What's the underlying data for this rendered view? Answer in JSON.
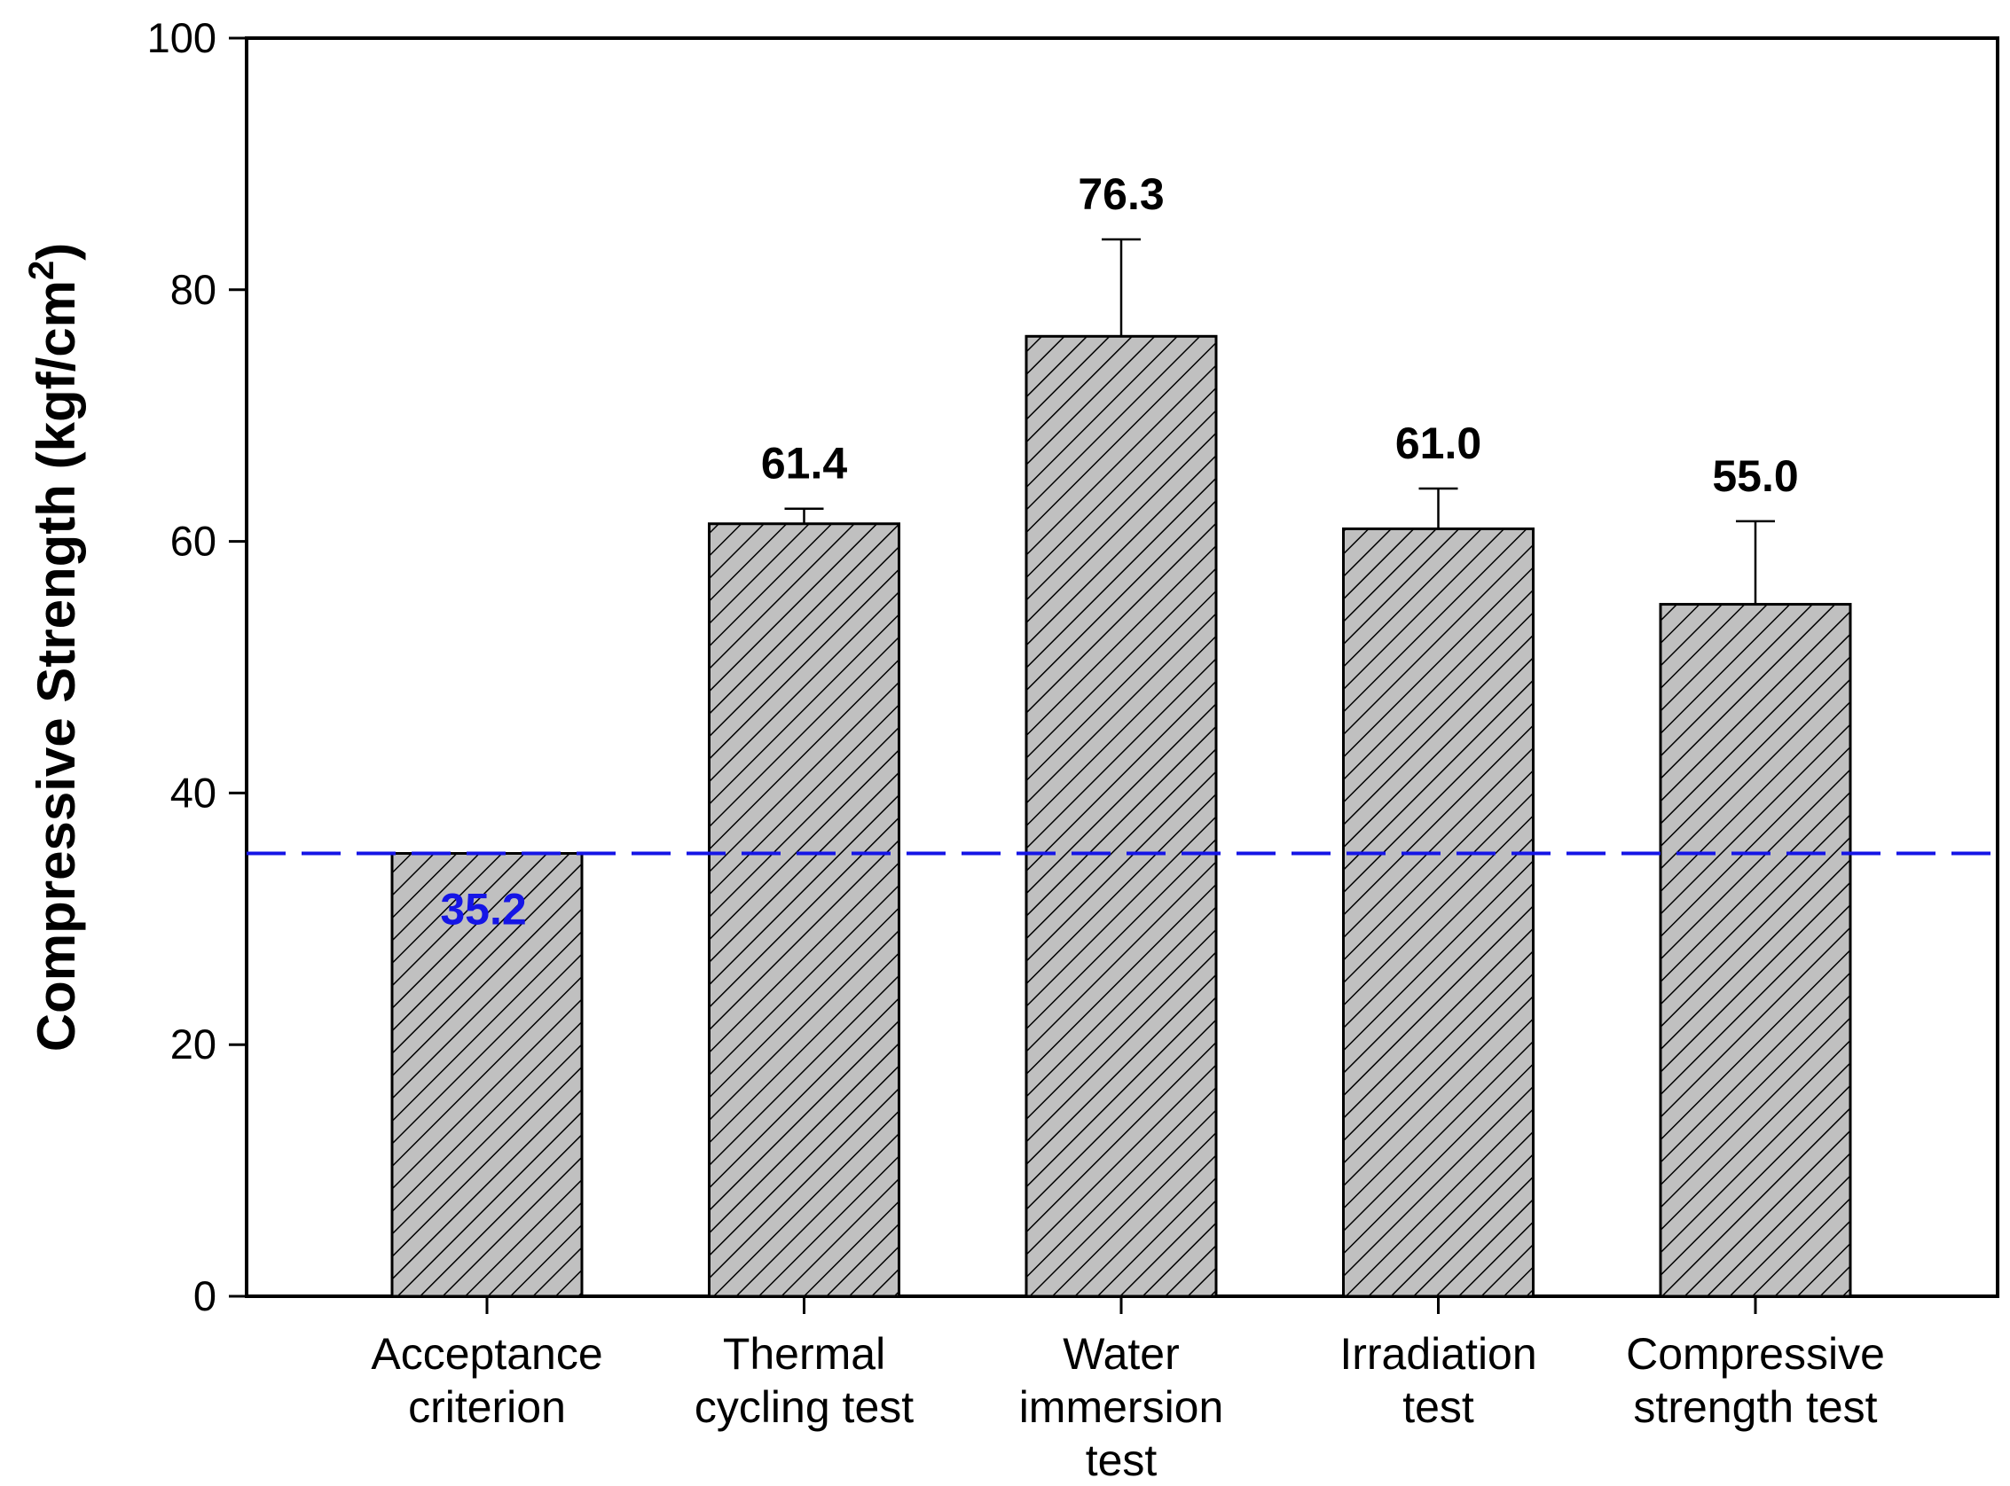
{
  "chart_data": {
    "type": "bar",
    "title": "",
    "xlabel": "",
    "ylabel": "Compressive Strength (kgf/cm",
    "ylabel_superscript": "2",
    "ylabel_close": ")",
    "ylim": [
      0,
      100
    ],
    "yticks": [
      0,
      20,
      40,
      60,
      80,
      100
    ],
    "ytick_labels": [
      "0",
      "20",
      "40",
      "60",
      "80",
      "100"
    ],
    "categories": [
      [
        "Acceptance",
        "criterion"
      ],
      [
        "Thermal",
        "cycling test"
      ],
      [
        "Water",
        "immersion",
        "test"
      ],
      [
        "Irradiation",
        "test"
      ],
      [
        "Compressive",
        "strength test"
      ]
    ],
    "values": [
      35.2,
      61.4,
      76.3,
      61.0,
      55.0
    ],
    "error_upper": [
      null,
      62.6,
      84.0,
      64.2,
      61.6
    ],
    "value_labels": [
      "35.2",
      "61.4",
      "76.3",
      "61.0",
      "55.0"
    ],
    "reference_line": {
      "value": 35.2,
      "style": "dashed",
      "color": "#1515e6"
    },
    "colors": {
      "bar_fill": "#c0c0c0",
      "bar_hatch": "#000000",
      "axis": "#000000",
      "reference": "#1515e6"
    },
    "grid": false,
    "legend": "none"
  }
}
